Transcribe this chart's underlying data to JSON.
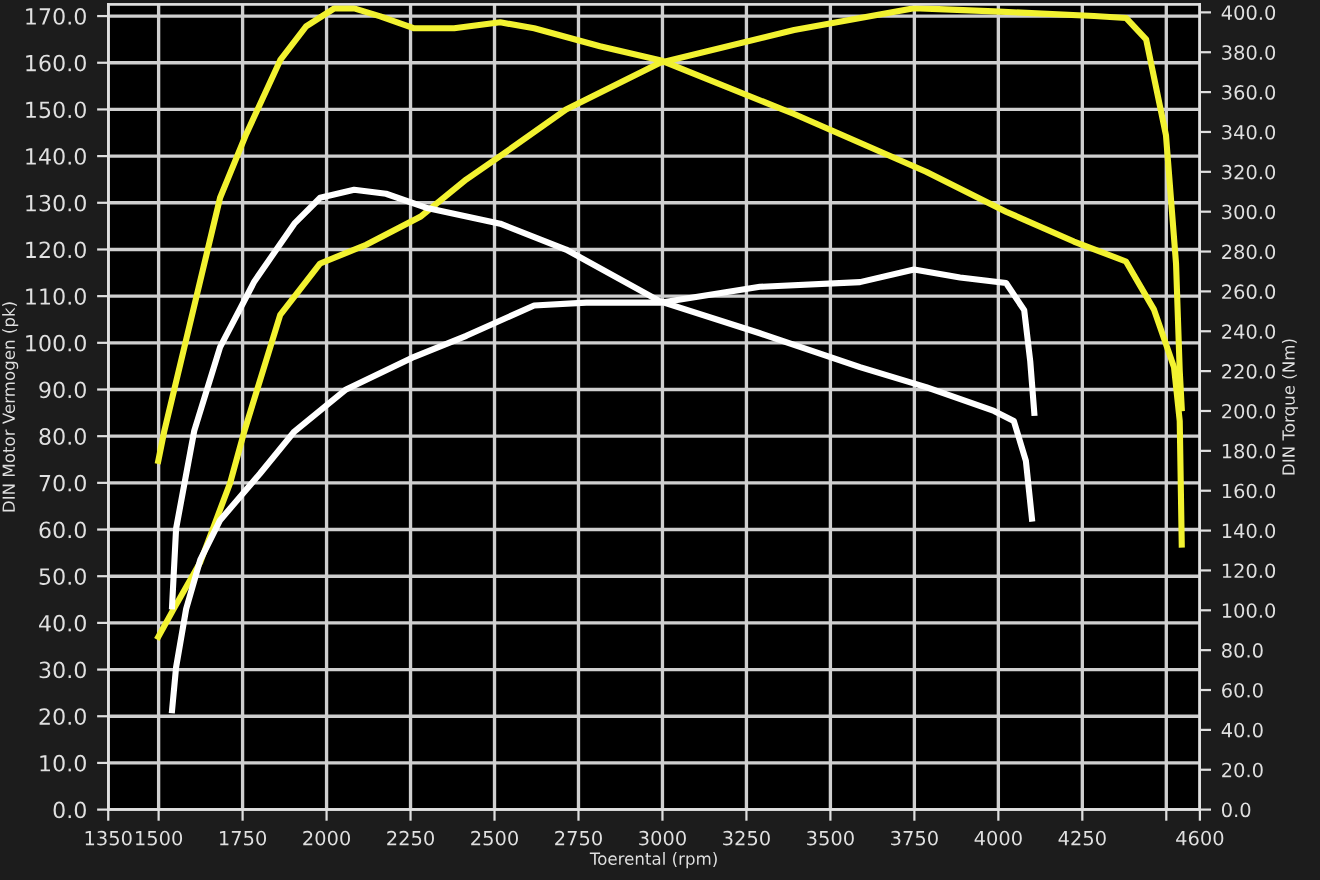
{
  "chart_data": {
    "type": "line",
    "xlabel": "Toerental (rpm)",
    "ylabel": "DIN Motor Vermogen (pk)",
    "y2label": "DIN Torque (Nm)",
    "xlim": [
      1350,
      4600
    ],
    "xticks": [
      1350,
      1500,
      1750,
      2000,
      2250,
      2500,
      2750,
      3000,
      3250,
      3500,
      3750,
      4000,
      4250,
      {
        "value": 4500,
        "label": null
      },
      4600
    ],
    "ylim": [
      0,
      172.5
    ],
    "yticks": [
      {
        "value": 0,
        "label": "0.0"
      },
      {
        "value": 10,
        "label": "10.0"
      },
      {
        "value": 20,
        "label": "20.0"
      },
      {
        "value": 30,
        "label": "30.0"
      },
      {
        "value": 40,
        "label": "40.0"
      },
      {
        "value": 50,
        "label": "50.0"
      },
      {
        "value": 60,
        "label": "60.0"
      },
      {
        "value": 70,
        "label": "70.0"
      },
      {
        "value": 80,
        "label": "80.0"
      },
      {
        "value": 90,
        "label": "90.0"
      },
      {
        "value": 100,
        "label": "100.0"
      },
      {
        "value": 110,
        "label": "110.0"
      },
      {
        "value": 120,
        "label": "120.0"
      },
      {
        "value": 130,
        "label": "130.0"
      },
      {
        "value": 140,
        "label": "140.0"
      },
      {
        "value": 150,
        "label": "150.0"
      },
      {
        "value": 160,
        "label": "160.0"
      },
      {
        "value": 170,
        "label": "170.0"
      }
    ],
    "y2lim": [
      0,
      404
    ],
    "y2ticks": [
      {
        "value": 0,
        "label": "0.0"
      },
      {
        "value": 20,
        "label": "20.0"
      },
      {
        "value": 40,
        "label": "40.0"
      },
      {
        "value": 60,
        "label": "60.0"
      },
      {
        "value": 80,
        "label": "80.0"
      },
      {
        "value": 100,
        "label": "100.0"
      },
      {
        "value": 120,
        "label": "120.0"
      },
      {
        "value": 140,
        "label": "140.0"
      },
      {
        "value": 160,
        "label": "160.0"
      },
      {
        "value": 180,
        "label": "180.0"
      },
      {
        "value": 200,
        "label": "200.0"
      },
      {
        "value": 220,
        "label": "220.0"
      },
      {
        "value": 240,
        "label": "240.0"
      },
      {
        "value": 260,
        "label": "260.0"
      },
      {
        "value": 280,
        "label": "280.0"
      },
      {
        "value": 300,
        "label": "300.0"
      },
      {
        "value": 320,
        "label": "320.0"
      },
      {
        "value": 340,
        "label": "340.0"
      },
      {
        "value": 360,
        "label": "360.0"
      },
      {
        "value": 380,
        "label": "380.0"
      },
      {
        "value": 400,
        "label": "400.0"
      }
    ],
    "grid": true,
    "marker": "none",
    "line_style": "solid",
    "series": [
      {
        "color": "#f2f230",
        "axis": "y2",
        "x": [
          1499,
          1517,
          1683,
          1761,
          1862,
          1939,
          2023,
          2082,
          2160,
          2261,
          2380,
          2517,
          2618,
          2814,
          2993,
          3392,
          3785,
          4023,
          4225,
          4380,
          4463,
          4523,
          4540,
          4546
        ],
        "values": [
          175,
          190,
          307,
          339,
          376,
          393,
          402,
          402,
          398,
          392,
          392,
          395,
          392,
          383,
          376,
          349,
          320,
          300,
          285,
          275,
          251,
          222,
          195,
          133
        ]
      },
      {
        "color": "#f2f230",
        "x": [
          1499,
          1545,
          1624,
          1713,
          1755,
          1862,
          1981,
          2118,
          2279,
          2416,
          2517,
          2713,
          2993,
          3392,
          3749,
          3987,
          4285,
          4380,
          4440,
          4499,
          4529,
          4540,
          4546
        ],
        "values": [
          37,
          43,
          53,
          70,
          81,
          106,
          117,
          121,
          127,
          135,
          140,
          150,
          160,
          167,
          171.7,
          171,
          170,
          169.6,
          165,
          144.5,
          117,
          94,
          86
        ]
      },
      {
        "color": "#ffffff",
        "axis": "y2",
        "x": [
          1540,
          1552,
          1606,
          1683,
          1785,
          1904,
          1981,
          2082,
          2177,
          2296,
          2517,
          2713,
          2993,
          3290,
          3588,
          3785,
          3987,
          4046,
          4082,
          4100
        ],
        "values": [
          102,
          141,
          190,
          232,
          265,
          294,
          307,
          311,
          309,
          302,
          294,
          281,
          255,
          239,
          222,
          212,
          200,
          195,
          175,
          146
        ]
      },
      {
        "color": "#ffffff",
        "x": [
          1540,
          1552,
          1582,
          1624,
          1683,
          1802,
          1904,
          2058,
          2261,
          2416,
          2618,
          2773,
          2993,
          3290,
          3588,
          3749,
          3886,
          4023,
          4077,
          4095,
          4107
        ],
        "values": [
          21.3,
          30.5,
          43,
          53.5,
          62,
          72,
          81,
          90,
          97,
          101.5,
          108,
          108.6,
          108.6,
          112,
          113,
          115.7,
          114,
          112.8,
          107,
          96,
          85
        ]
      }
    ]
  }
}
